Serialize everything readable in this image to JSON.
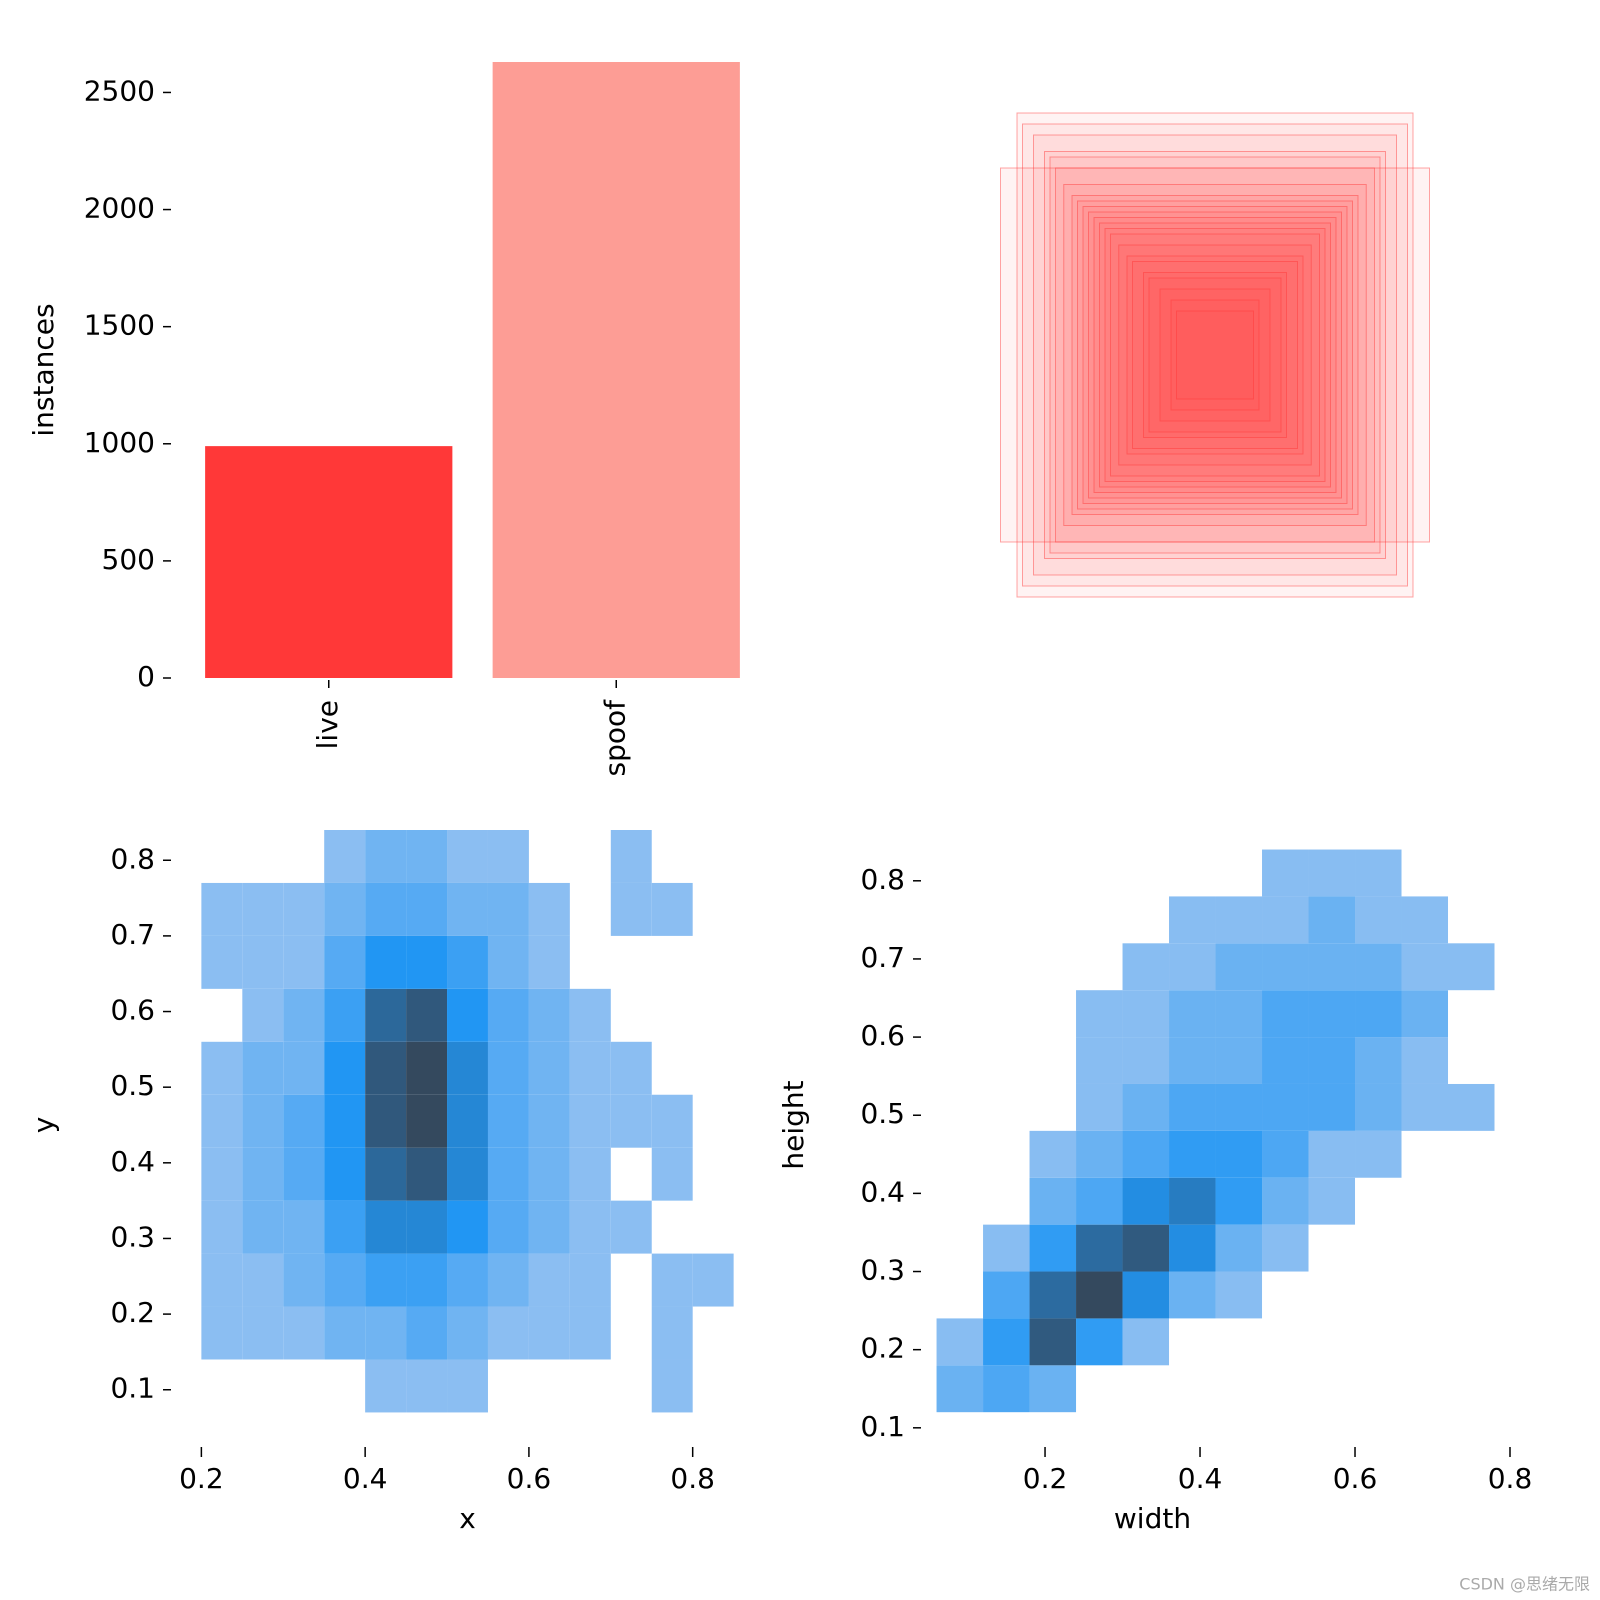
{
  "chart_data": [
    {
      "type": "bar",
      "ylabel": "instances",
      "categories": [
        "live",
        "spoof"
      ],
      "values": [
        990,
        2630
      ],
      "colors": [
        "#ff3838",
        "#fd9d95"
      ],
      "ylim": [
        0,
        2630
      ],
      "yticks": [
        0,
        500,
        1000,
        1500,
        2000,
        2500
      ]
    },
    {
      "type": "boxes",
      "color": "#ff3838",
      "widths": [
        0.72,
        0.7,
        0.66,
        0.62,
        0.6,
        0.58,
        0.55,
        0.52,
        0.5,
        0.48,
        0.46,
        0.44,
        0.42,
        0.4,
        0.38,
        0.35,
        0.32,
        0.3,
        0.26,
        0.24,
        0.2,
        0.16,
        0.14,
        0.78
      ],
      "heights": [
        0.88,
        0.84,
        0.8,
        0.74,
        0.72,
        0.68,
        0.62,
        0.58,
        0.56,
        0.54,
        0.52,
        0.5,
        0.48,
        0.46,
        0.44,
        0.4,
        0.36,
        0.34,
        0.3,
        0.28,
        0.24,
        0.2,
        0.16,
        0.68
      ]
    },
    {
      "type": "heatmap",
      "xlabel": "x",
      "ylabel": "y",
      "xlim": [
        0.18,
        0.87
      ],
      "ylim": [
        0.06,
        0.84
      ],
      "xticks": [
        0.2,
        0.4,
        0.6,
        0.8
      ],
      "yticks": [
        0.1,
        0.2,
        0.3,
        0.4,
        0.5,
        0.6,
        0.7,
        0.8
      ],
      "colors": [
        "#a5c8f2",
        "#2196f3",
        "#34495e"
      ],
      "xbins": [
        0.2,
        0.25,
        0.3,
        0.35,
        0.4,
        0.45,
        0.5,
        0.55,
        0.6,
        0.65,
        0.7,
        0.75,
        0.8,
        0.85
      ],
      "ybins": [
        0.07,
        0.14,
        0.21,
        0.28,
        0.35,
        0.42,
        0.49,
        0.56,
        0.63,
        0.7,
        0.77,
        0.84
      ],
      "counts": [
        [
          0,
          0,
          0,
          0,
          1,
          1,
          1,
          0,
          0,
          0,
          0,
          1,
          0
        ],
        [
          1,
          1,
          1,
          2,
          2,
          3,
          2,
          1,
          1,
          1,
          0,
          1,
          0
        ],
        [
          1,
          1,
          2,
          3,
          4,
          4,
          3,
          2,
          1,
          1,
          0,
          1,
          1
        ],
        [
          1,
          2,
          2,
          4,
          6,
          6,
          5,
          3,
          2,
          1,
          1,
          0,
          0
        ],
        [
          1,
          2,
          3,
          5,
          8,
          9,
          6,
          3,
          2,
          1,
          0,
          1,
          0
        ],
        [
          1,
          2,
          3,
          5,
          9,
          10,
          6,
          3,
          2,
          1,
          1,
          1,
          0
        ],
        [
          1,
          2,
          2,
          5,
          9,
          10,
          6,
          3,
          2,
          1,
          1,
          0,
          0
        ],
        [
          0,
          1,
          2,
          4,
          8,
          9,
          5,
          3,
          2,
          1,
          0,
          0,
          0
        ],
        [
          1,
          1,
          1,
          3,
          5,
          5,
          4,
          2,
          1,
          0,
          0,
          0,
          0
        ],
        [
          1,
          1,
          1,
          2,
          3,
          3,
          2,
          2,
          1,
          0,
          1,
          1,
          0
        ],
        [
          0,
          0,
          0,
          1,
          2,
          2,
          1,
          1,
          0,
          0,
          1,
          0,
          0
        ]
      ]
    },
    {
      "type": "heatmap",
      "xlabel": "width",
      "ylabel": "height",
      "xlim": [
        0.058,
        0.8
      ],
      "ylim": [
        0.11,
        0.865
      ],
      "xticks": [
        0.2,
        0.4,
        0.6,
        0.8
      ],
      "yticks": [
        0.1,
        0.2,
        0.3,
        0.4,
        0.5,
        0.6,
        0.7,
        0.8
      ],
      "colors": [
        "#a5c8f2",
        "#2196f3",
        "#34495e"
      ],
      "xbins": [
        0.06,
        0.12,
        0.18,
        0.24,
        0.3,
        0.36,
        0.42,
        0.48,
        0.54,
        0.6,
        0.66,
        0.72,
        0.78
      ],
      "ybins": [
        0.12,
        0.18,
        0.24,
        0.3,
        0.36,
        0.42,
        0.48,
        0.54,
        0.6,
        0.66,
        0.72,
        0.78,
        0.84
      ],
      "counts": [
        [
          2,
          3,
          2,
          0,
          0,
          0,
          0,
          0,
          0,
          0,
          0,
          0
        ],
        [
          1,
          4,
          8,
          4,
          1,
          0,
          0,
          0,
          0,
          0,
          0,
          0
        ],
        [
          0,
          3,
          7,
          9,
          5,
          2,
          1,
          0,
          0,
          0,
          0,
          0
        ],
        [
          0,
          1,
          4,
          7,
          8,
          5,
          2,
          1,
          0,
          0,
          0,
          0
        ],
        [
          0,
          0,
          2,
          3,
          5,
          6,
          4,
          2,
          1,
          0,
          0,
          0
        ],
        [
          0,
          0,
          1,
          2,
          3,
          4,
          4,
          3,
          1,
          1,
          0,
          0
        ],
        [
          0,
          0,
          0,
          1,
          2,
          3,
          3,
          3,
          3,
          2,
          1,
          1
        ],
        [
          0,
          0,
          0,
          1,
          1,
          2,
          2,
          3,
          3,
          2,
          1,
          0
        ],
        [
          0,
          0,
          0,
          1,
          1,
          2,
          2,
          3,
          3,
          3,
          2,
          0
        ],
        [
          0,
          0,
          0,
          0,
          1,
          1,
          2,
          2,
          2,
          2,
          1,
          1
        ],
        [
          0,
          0,
          0,
          0,
          0,
          1,
          1,
          1,
          2,
          1,
          1,
          0
        ],
        [
          0,
          0,
          0,
          0,
          0,
          0,
          0,
          1,
          1,
          1,
          0,
          0
        ]
      ]
    }
  ],
  "watermark": "CSDN @思绪无限"
}
